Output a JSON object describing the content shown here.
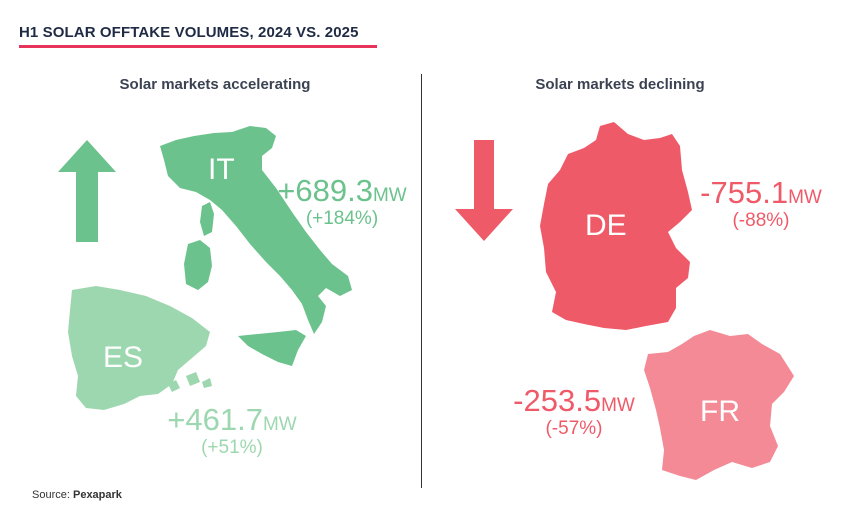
{
  "title": "H1 SOLAR OFFTAKE VOLUMES, 2024 VS. 2025",
  "left_heading": "Solar markets accelerating",
  "right_heading": "Solar markets declining",
  "source_label": "Source:",
  "source_name": "Pexapark",
  "colors": {
    "accent": "#e8345a",
    "green_dark": "#6bc28d",
    "green_light": "#9dd7af",
    "red_dark": "#ef5a69",
    "red_light": "#f38a95"
  },
  "chart_data": {
    "type": "map",
    "title": "H1 SOLAR OFFTAKE VOLUMES, 2024 VS. 2025",
    "unit": "MW",
    "markets": [
      {
        "code": "IT",
        "group": "Solar markets accelerating",
        "change_mw": "+689.3",
        "change_pct": "(+184%)"
      },
      {
        "code": "ES",
        "group": "Solar markets accelerating",
        "change_mw": "+461.7",
        "change_pct": "(+51%)"
      },
      {
        "code": "DE",
        "group": "Solar markets declining",
        "change_mw": "-755.1",
        "change_pct": "(-88%)"
      },
      {
        "code": "FR",
        "group": "Solar markets declining",
        "change_mw": "-253.5",
        "change_pct": "(-57%)"
      }
    ]
  }
}
